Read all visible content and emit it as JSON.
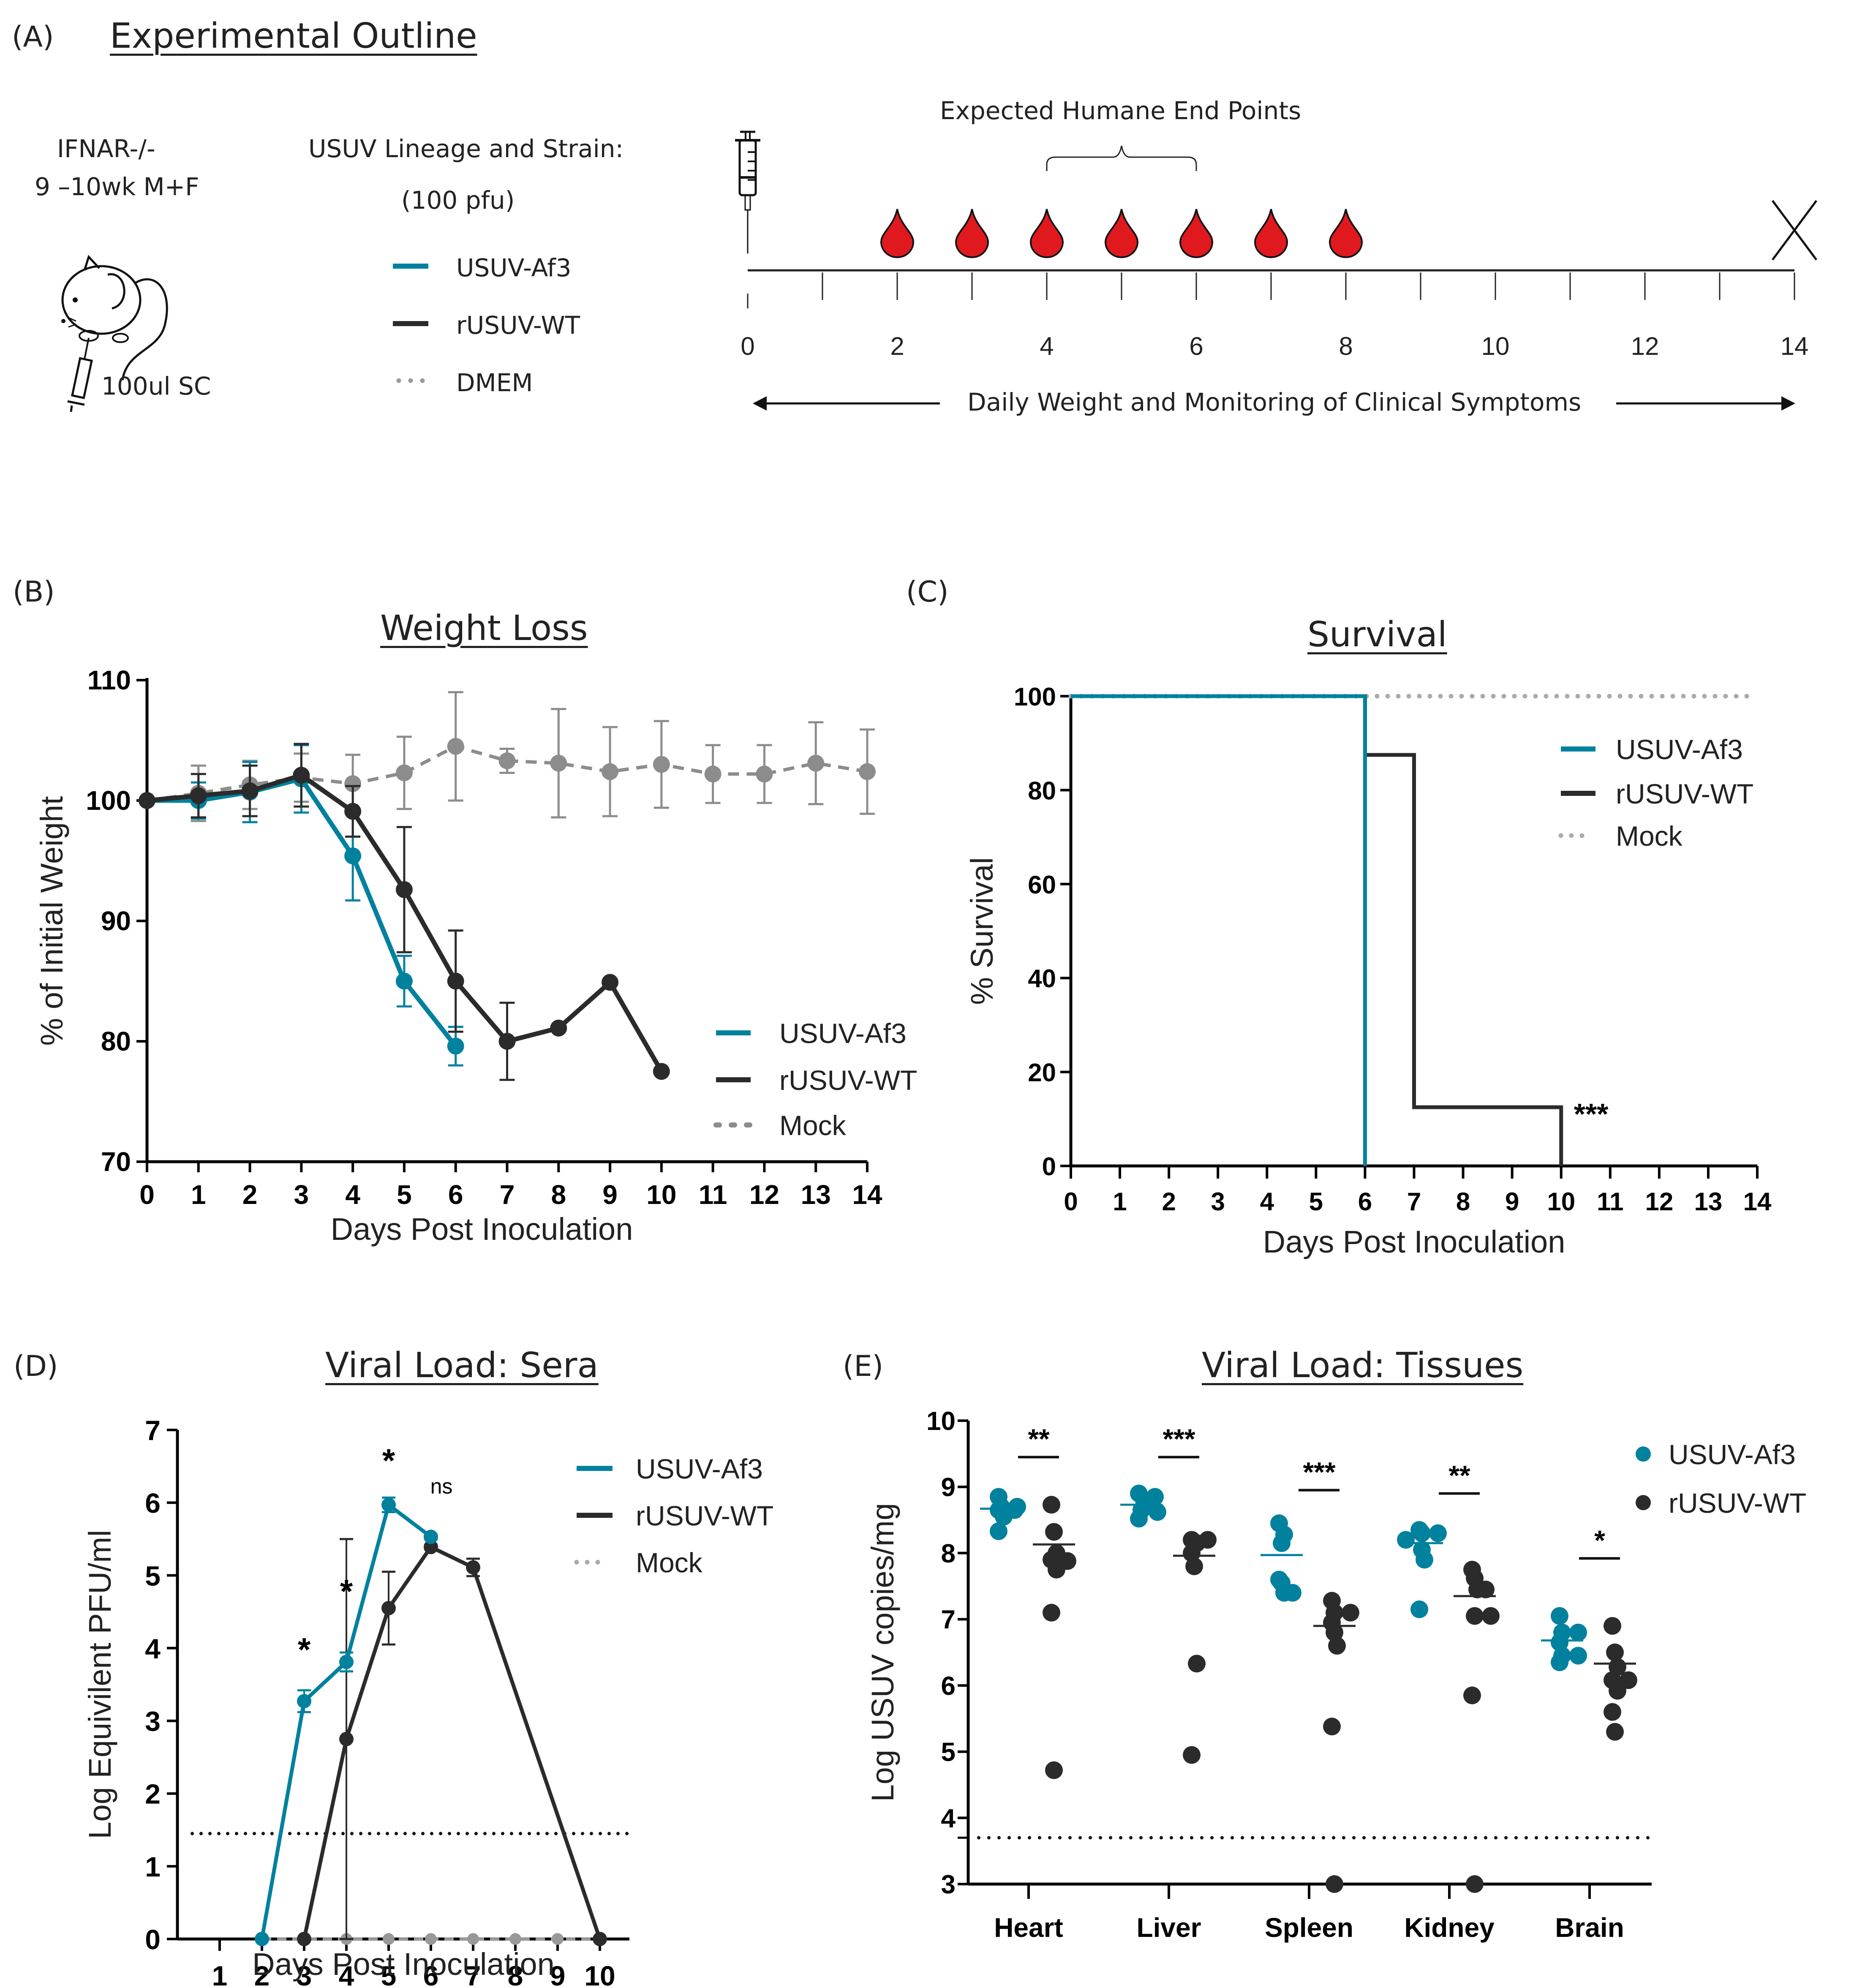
{
  "colors": {
    "af3": "#00819E",
    "wt": "#2B2B2B",
    "mock": "#8C8C8C",
    "blood": "#E0191F",
    "black": "#000000"
  },
  "panelA": {
    "label": "(A)",
    "title": "Experimental Outline",
    "mouse_line1": "IFNAR-/-",
    "mouse_line2": "9 –10wk M+F",
    "injection": "100ul SC",
    "strain_header": "USUV Lineage and Strain:",
    "dose": "(100 pfu)",
    "legend": [
      {
        "label": "USUV-Af3",
        "style": "solid",
        "color_key": "af3"
      },
      {
        "label": "rUSUV-WT",
        "style": "solid",
        "color_key": "wt"
      },
      {
        "label": "DMEM",
        "style": "dotted",
        "color_key": "mock"
      }
    ],
    "timeline": {
      "endpoints_label": "Expected Humane End Points",
      "day_min": 0,
      "day_max": 14,
      "tick_labels": [
        "0",
        "2",
        "4",
        "6",
        "8",
        "10",
        "12",
        "14"
      ],
      "tick_label_days": [
        0,
        2,
        4,
        6,
        8,
        10,
        12,
        14
      ],
      "bleed_days": [
        2,
        3,
        4,
        5,
        6,
        7,
        8
      ],
      "endpoint_bracket_days": [
        4,
        6
      ],
      "end_marker_day": 14,
      "monitoring_label": "Daily Weight and Monitoring of Clinical Symptoms"
    }
  },
  "chart_data": [
    {
      "id": "B",
      "panel_label": "(B)",
      "type": "line",
      "title": "Weight Loss",
      "xlabel": "Days Post Inoculation",
      "ylabel": "% of Initial Weight",
      "xlim": [
        0,
        14
      ],
      "ylim": [
        70,
        110
      ],
      "xticks": [
        0,
        1,
        2,
        3,
        4,
        5,
        6,
        7,
        8,
        9,
        10,
        11,
        12,
        13,
        14
      ],
      "yticks": [
        70,
        80,
        90,
        100,
        110
      ],
      "legend_position": "bottom-right",
      "series": [
        {
          "name": "Mock",
          "color_key": "mock",
          "dashed": true,
          "x": [
            0,
            1,
            2,
            3,
            4,
            5,
            6,
            7,
            8,
            9,
            10,
            11,
            12,
            13,
            14
          ],
          "y": [
            100,
            100.6,
            101.3,
            101.9,
            101.4,
            102.3,
            104.5,
            103.3,
            103.1,
            102.4,
            103.0,
            102.2,
            102.2,
            103.1,
            102.4
          ],
          "err": [
            0,
            2.3,
            2.0,
            2.0,
            2.4,
            3.0,
            4.5,
            1.0,
            4.5,
            3.7,
            3.6,
            2.4,
            2.4,
            3.4,
            3.5
          ]
        },
        {
          "name": "USUV-Af3",
          "color_key": "af3",
          "dashed": false,
          "x": [
            0,
            1,
            2,
            3,
            4,
            5,
            6
          ],
          "y": [
            100,
            100.0,
            100.7,
            101.8,
            95.4,
            85.0,
            79.6
          ],
          "err": [
            0,
            1.5,
            2.5,
            2.8,
            3.7,
            2.1,
            1.6
          ]
        },
        {
          "name": "rUSUV-WT",
          "color_key": "wt",
          "dashed": false,
          "x": [
            0,
            1,
            2,
            3,
            4,
            5,
            6,
            7,
            8,
            9,
            10
          ],
          "y": [
            100,
            100.4,
            100.8,
            102.1,
            99.1,
            92.6,
            85.0,
            80.0,
            81.1,
            84.9,
            77.5
          ],
          "err": [
            0,
            1.8,
            2.1,
            2.6,
            2.1,
            5.2,
            4.2,
            3.2,
            0,
            0,
            0
          ]
        }
      ]
    },
    {
      "id": "C",
      "panel_label": "(C)",
      "type": "line",
      "subtype": "kaplan-meier",
      "title": "Survival",
      "xlabel": "Days Post Inoculation",
      "ylabel": "% Survival",
      "xlim": [
        0,
        14
      ],
      "ylim": [
        0,
        100
      ],
      "xticks": [
        0,
        1,
        2,
        3,
        4,
        5,
        6,
        7,
        8,
        9,
        10,
        11,
        12,
        13,
        14
      ],
      "yticks": [
        0,
        20,
        40,
        60,
        80,
        100
      ],
      "legend_position": "top-right",
      "annotation": {
        "text": "***",
        "x": 10,
        "y": 12.5
      },
      "series": [
        {
          "name": "USUV-Af3",
          "color_key": "af3",
          "style": "solid",
          "x": [
            0,
            6,
            6
          ],
          "y": [
            100,
            100,
            0
          ]
        },
        {
          "name": "rUSUV-WT",
          "color_key": "wt",
          "style": "solid",
          "x": [
            6,
            6,
            7,
            7,
            10,
            10
          ],
          "y": [
            100,
            87.5,
            87.5,
            12.5,
            12.5,
            0
          ]
        },
        {
          "name": "Mock",
          "color_key": "mock",
          "style": "dotted",
          "x": [
            0,
            14
          ],
          "y": [
            100,
            100
          ]
        }
      ]
    },
    {
      "id": "D",
      "panel_label": "(D)",
      "type": "line",
      "title": "Viral Load: Sera",
      "xlabel": "Days Post Inoculation",
      "ylabel": "Log Equivilent PFU/ml",
      "xlim": [
        0,
        10.7
      ],
      "ylim": [
        0,
        7
      ],
      "xticks": [
        1,
        2,
        3,
        4,
        5,
        6,
        7,
        8,
        9,
        10
      ],
      "yticks": [
        0,
        1,
        2,
        3,
        4,
        5,
        6,
        7
      ],
      "legend_position": "top-right",
      "limit_of_detection": 1.45,
      "annotations": [
        {
          "text": "*",
          "x": 3,
          "y": 4.0
        },
        {
          "text": "*",
          "x": 4,
          "y": 4.8
        },
        {
          "text": "*",
          "x": 5,
          "y": 6.6
        },
        {
          "text": "ns",
          "x": 6,
          "y": 6.3
        }
      ],
      "series": [
        {
          "name": "USUV-Af3",
          "color_key": "af3",
          "dashed": false,
          "x": [
            2,
            3,
            4,
            5,
            6
          ],
          "y": [
            0,
            3.27,
            3.81,
            5.97,
            5.53
          ],
          "err": [
            0,
            0.15,
            0.13,
            0.1,
            0.03
          ]
        },
        {
          "name": "rUSUV-WT",
          "color_key": "wt",
          "dashed": false,
          "x": [
            3,
            4,
            5,
            6,
            7,
            10
          ],
          "y": [
            0,
            2.75,
            4.55,
            5.39,
            5.11,
            0
          ],
          "err": [
            0,
            2.75,
            0.5,
            0.03,
            0.12,
            0
          ]
        },
        {
          "name": "Mock",
          "color_key": "mock",
          "dashed": true,
          "x": [
            2,
            3,
            4,
            5,
            6,
            7,
            8,
            9,
            10
          ],
          "y": [
            0,
            0,
            0,
            0,
            0,
            0,
            0,
            0,
            0
          ],
          "err": [
            0,
            0,
            0,
            0,
            0,
            0,
            0,
            0,
            0
          ]
        }
      ]
    },
    {
      "id": "E",
      "panel_label": "(E)",
      "type": "scatter",
      "title": "Viral Load: Tissues",
      "xlabel": "",
      "ylabel": "Log USUV copies/mg",
      "categories": [
        "Heart",
        "Liver",
        "Spleen",
        "Kidney",
        "Brain"
      ],
      "ylim": [
        3,
        10
      ],
      "yticks": [
        3,
        4,
        5,
        6,
        7,
        8,
        9,
        10
      ],
      "legend_position": "top-right",
      "limit_of_detection": 3.7,
      "significance": [
        "**",
        "***",
        "***",
        "**",
        "*"
      ],
      "significance_bar_y": [
        9.45,
        9.45,
        8.95,
        8.9,
        7.92
      ],
      "series": [
        {
          "name": "USUV-Af3",
          "color_key": "af3",
          "means": [
            8.67,
            8.73,
            7.97,
            8.15,
            6.68
          ],
          "values": [
            [
              8.85,
              8.7,
              8.7,
              8.65,
              8.65,
              8.55,
              8.33
            ],
            [
              8.9,
              8.85,
              8.8,
              8.7,
              8.65,
              8.62,
              8.52
            ],
            [
              8.45,
              8.15,
              8.28,
              7.6,
              7.55,
              7.4,
              7.4
            ],
            [
              8.35,
              8.3,
              8.3,
              8.2,
              8.05,
              7.9,
              7.15
            ],
            [
              7.05,
              6.8,
              6.8,
              6.65,
              6.45,
              6.45,
              6.35
            ]
          ]
        },
        {
          "name": "rUSUV-WT",
          "color_key": "wt",
          "means": [
            8.13,
            7.96,
            6.9,
            7.35,
            6.33
          ],
          "values": [
            [
              8.73,
              8.32,
              8.0,
              7.9,
              7.88,
              7.75,
              7.1,
              4.72
            ],
            [
              8.2,
              8.2,
              8.15,
              8.0,
              7.8,
              6.33,
              4.95
            ],
            [
              7.28,
              7.1,
              7.1,
              6.95,
              6.8,
              6.6,
              5.38,
              3.0
            ],
            [
              7.75,
              7.62,
              7.45,
              7.45,
              7.05,
              7.05,
              5.85,
              3.0
            ],
            [
              6.9,
              6.5,
              6.28,
              6.08,
              6.08,
              5.92,
              5.6,
              5.3
            ]
          ]
        }
      ]
    }
  ]
}
